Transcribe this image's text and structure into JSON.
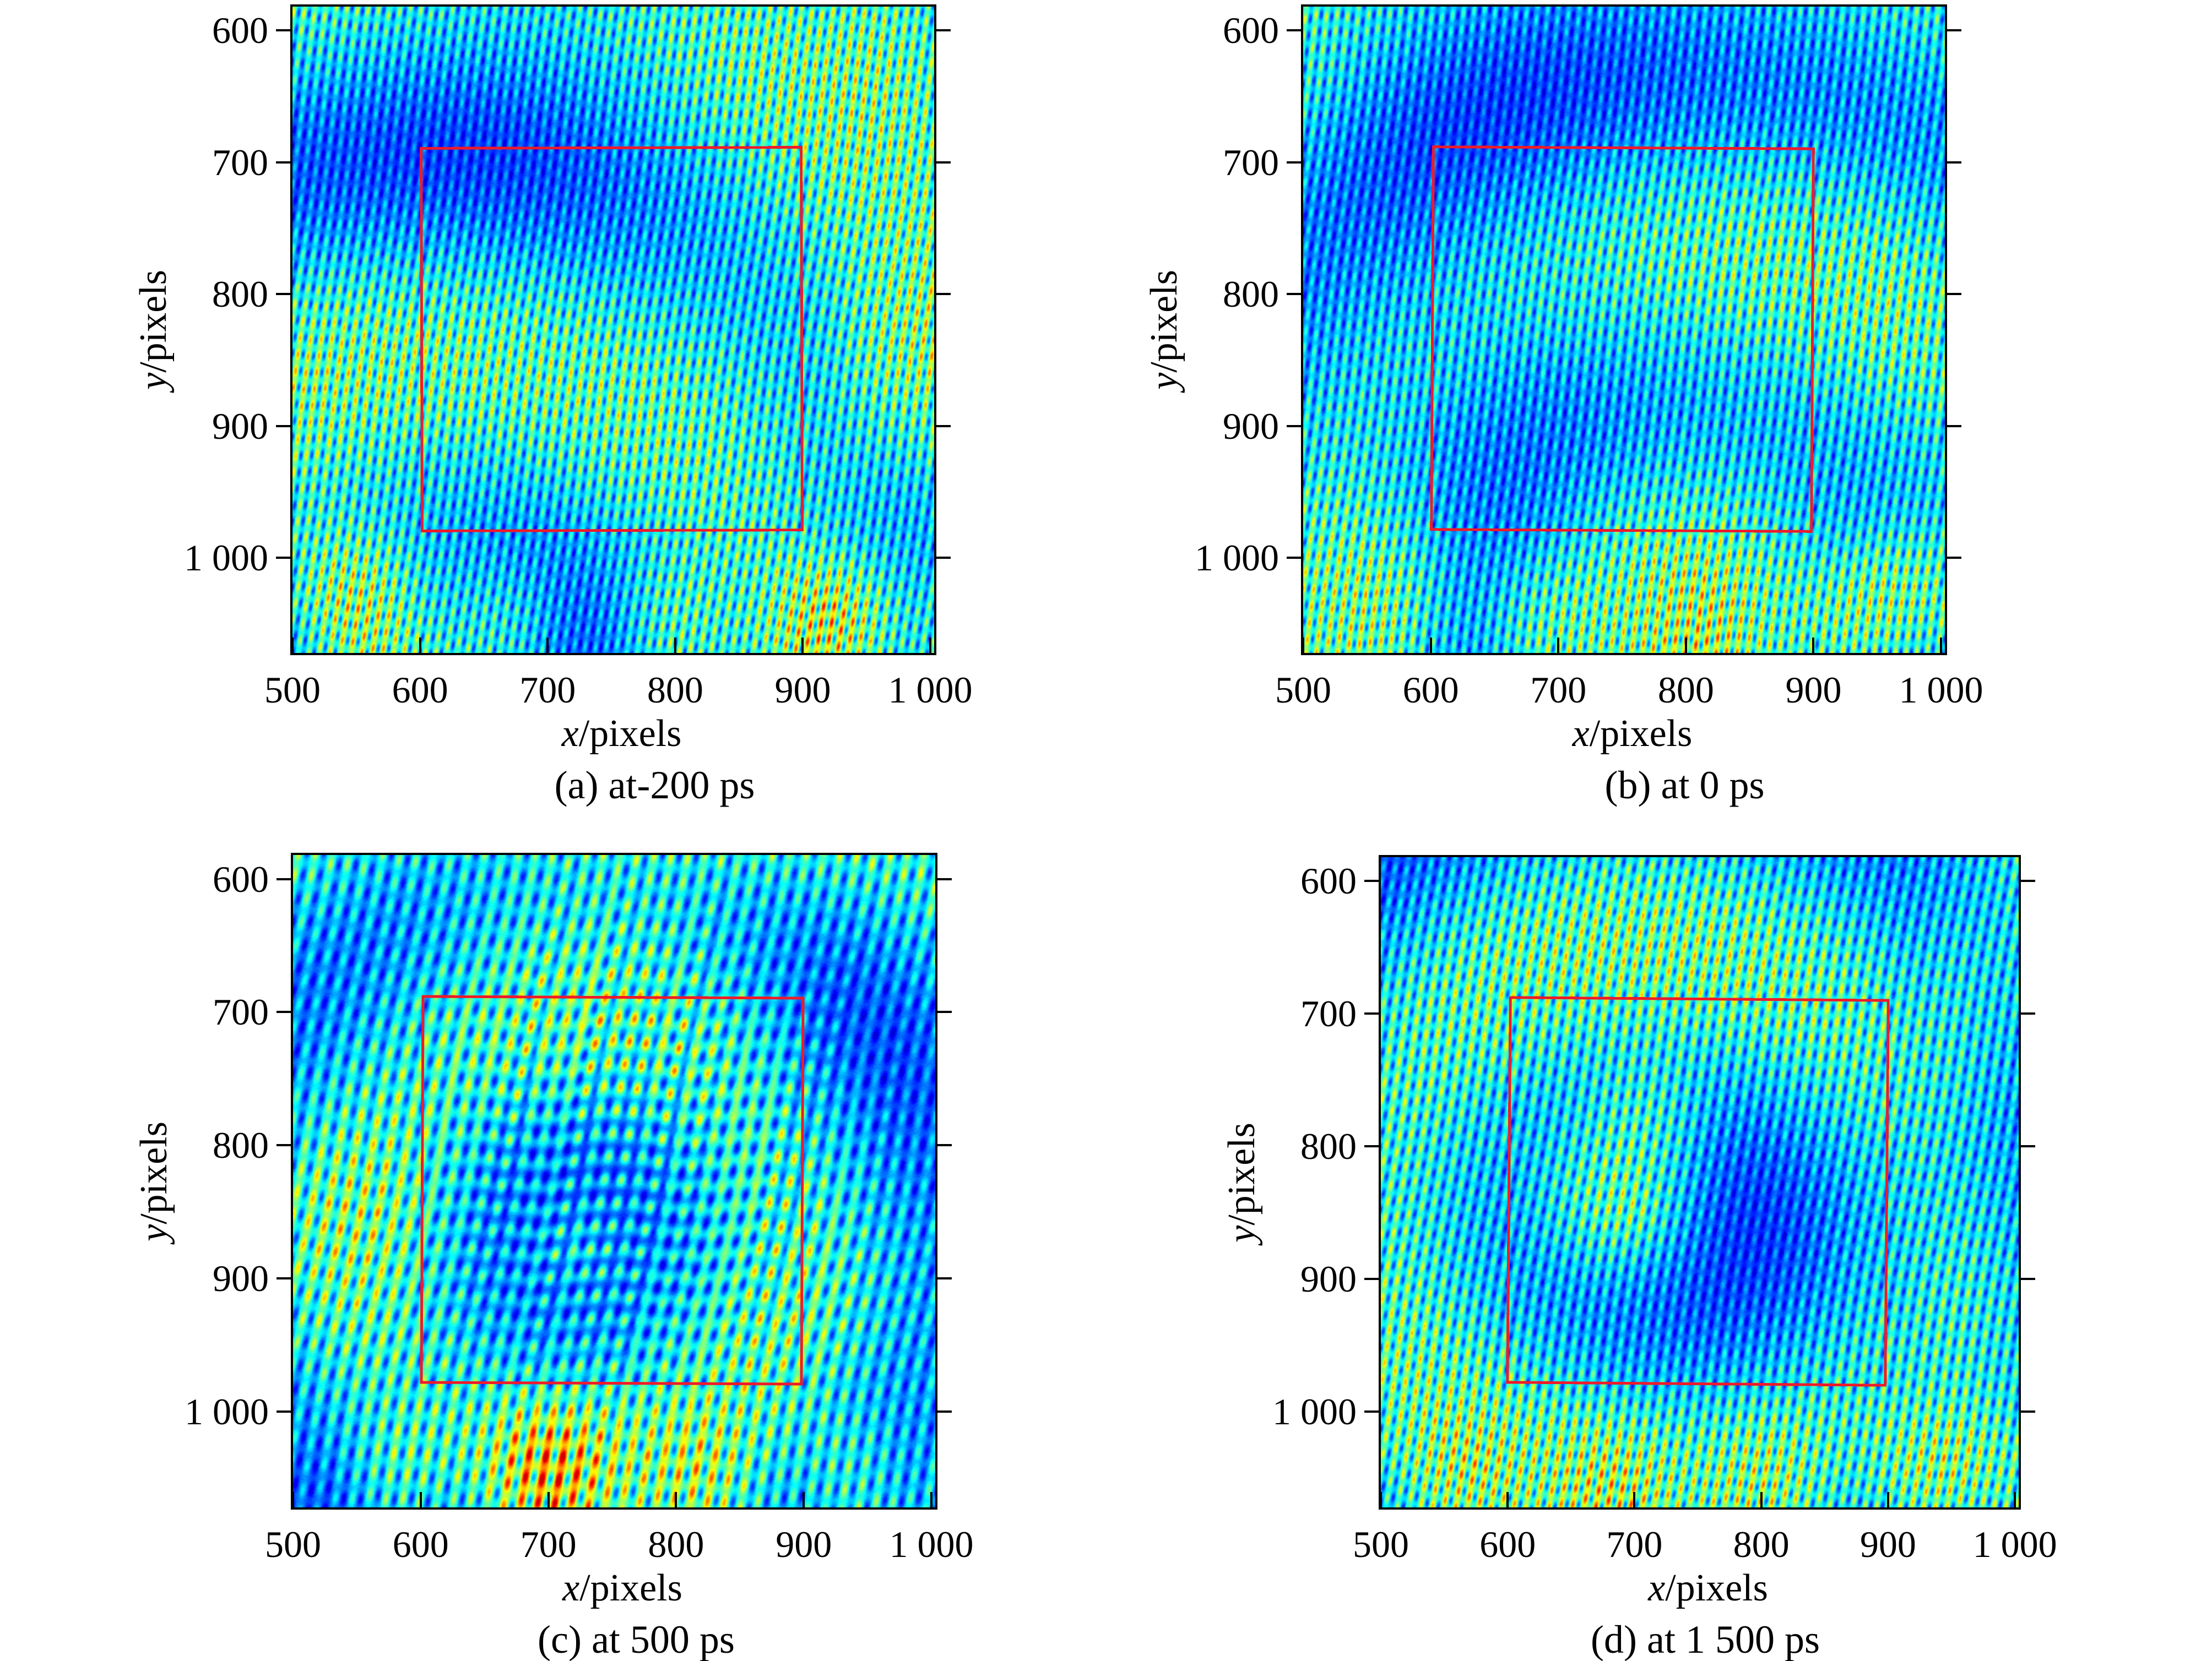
{
  "figure": {
    "background": "#ffffff",
    "xlabel_italic": "x",
    "xlabel_rest": "/pixels",
    "ylabel_italic": "y",
    "ylabel_rest": "/pixels",
    "x_tick_labels": [
      "500",
      "600",
      "700",
      "800",
      "900",
      "1 000"
    ],
    "y_tick_labels": [
      "600",
      "700",
      "800",
      "900",
      "1 000"
    ],
    "roi_color": "#ee1b2a",
    "colormap": "jet",
    "panels": [
      {
        "id": "a",
        "caption": "(a) at-200 ps"
      },
      {
        "id": "b",
        "caption": "(b) at 0 ps"
      },
      {
        "id": "c",
        "caption": "(c) at 500 ps"
      },
      {
        "id": "d",
        "caption": "(d) at 1 500 ps"
      }
    ]
  },
  "chart_data": [
    {
      "type": "heatmap",
      "panel": "a",
      "title": "(a) at-200 ps",
      "xlabel": "x/pixels",
      "ylabel": "y/pixels",
      "x_range": [
        500,
        1003
      ],
      "y_range": [
        582,
        1072
      ],
      "y_axis_reversed": true,
      "x_ticks": [
        500,
        600,
        700,
        800,
        900,
        1000
      ],
      "y_ticks": [
        600,
        700,
        800,
        900,
        1000
      ],
      "colormap": "jet",
      "grid": false,
      "content": "interferogram with near-vertical fringes, period ~19 px, blue background with cyan-green fringes, orange hot spots near bottom-left and bottom-right",
      "roi": {
        "shape": "rectangle",
        "color": "#ee1b2a",
        "x": [
          600,
          900
        ],
        "y": [
          688,
          980
        ]
      }
    },
    {
      "type": "heatmap",
      "panel": "b",
      "title": "(b) at 0 ps",
      "xlabel": "x/pixels",
      "ylabel": "y/pixels",
      "x_range": [
        500,
        1003
      ],
      "y_range": [
        582,
        1072
      ],
      "y_axis_reversed": true,
      "x_ticks": [
        500,
        600,
        700,
        800,
        900,
        1000
      ],
      "y_ticks": [
        600,
        700,
        800,
        900,
        1000
      ],
      "colormap": "jet",
      "grid": false,
      "content": "interferogram with near-vertical fringes, mostly blue field, green fringe arcs mid-right, bright orange spot bottom-right",
      "roi": {
        "shape": "rectangle",
        "color": "#ee1b2a",
        "x": [
          600,
          900
        ],
        "y": [
          688,
          980
        ]
      }
    },
    {
      "type": "heatmap",
      "panel": "c",
      "title": "(c) at 500 ps",
      "xlabel": "x/pixels",
      "ylabel": "y/pixels",
      "x_range": [
        500,
        1003
      ],
      "y_range": [
        582,
        1072
      ],
      "y_axis_reversed": true,
      "x_ticks": [
        500,
        600,
        700,
        800,
        900,
        1000
      ],
      "y_ticks": [
        600,
        700,
        800,
        900,
        1000
      ],
      "colormap": "jet",
      "grid": false,
      "content": "interferogram with coarser tilted fringes broken into horizontal rows of green dashes inside ROI, bright yellow cluster at bottom-left",
      "roi": {
        "shape": "rectangle",
        "color": "#ee1b2a",
        "x": [
          600,
          900
        ],
        "y": [
          688,
          980
        ]
      }
    },
    {
      "type": "heatmap",
      "panel": "d",
      "title": "(d) at 1 500 ps",
      "xlabel": "x/pixels",
      "ylabel": "y/pixels",
      "x_range": [
        500,
        1003
      ],
      "y_range": [
        582,
        1072
      ],
      "y_axis_reversed": true,
      "x_ticks": [
        500,
        600,
        700,
        800,
        900,
        1000
      ],
      "y_ticks": [
        600,
        700,
        800,
        900,
        1000
      ],
      "colormap": "jet",
      "grid": false,
      "content": "interferogram with near-vertical fringes, green annulus around center-left with yellow dash cluster, orange spots bottom-right",
      "roi": {
        "shape": "rectangle",
        "color": "#ee1b2a",
        "x": [
          600,
          900
        ],
        "y": [
          688,
          980
        ]
      }
    }
  ]
}
